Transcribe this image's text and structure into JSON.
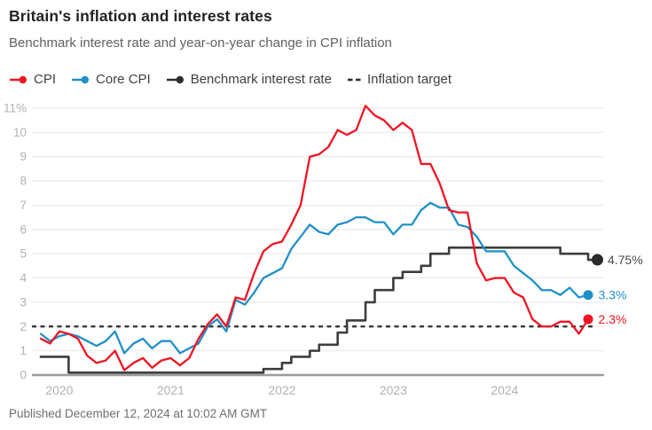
{
  "header": {
    "title": "Britain's inflation and interest rates",
    "subtitle": "Benchmark interest rate and year-on-year change in CPI inflation"
  },
  "legend": {
    "items": [
      {
        "label": "CPI",
        "color": "#f01423",
        "marker": "line-dot"
      },
      {
        "label": "Core CPI",
        "color": "#2090c8",
        "marker": "line-dot"
      },
      {
        "label": "Benchmark interest rate",
        "color": "#2e2e2e",
        "marker": "line-dot"
      },
      {
        "label": "Inflation target",
        "color": "#2e2e2e",
        "marker": "dashes"
      }
    ]
  },
  "footer": {
    "published": "Published December 12, 2024 at 10:02 AM GMT"
  },
  "chart_data": {
    "type": "line",
    "title": "Britain's inflation and interest rates",
    "subtitle": "Benchmark interest rate and year-on-year change in CPI inflation",
    "unit": "percent",
    "x_start": "2019-11",
    "x_frequency": "monthly",
    "ylim": [
      0,
      11
    ],
    "grid": "horizontal",
    "yticks": [
      "0",
      "1",
      "2",
      "3",
      "4",
      "5",
      "6",
      "7",
      "8",
      "9",
      "10",
      "11%"
    ],
    "xticks": [
      "2020",
      "2021",
      "2022",
      "2023",
      "2024"
    ],
    "target_line": {
      "name": "Inflation target",
      "value": 2,
      "style": "dashed",
      "color": "#2e2e2e"
    },
    "series": [
      {
        "name": "CPI",
        "color": "#f01423",
        "step": false,
        "end_label": "2.3%",
        "values": [
          1.5,
          1.3,
          1.8,
          1.7,
          1.5,
          0.8,
          0.5,
          0.6,
          1.0,
          0.2,
          0.5,
          0.7,
          0.3,
          0.6,
          0.7,
          0.4,
          0.7,
          1.5,
          2.1,
          2.5,
          2.0,
          3.2,
          3.1,
          4.2,
          5.1,
          5.4,
          5.5,
          6.2,
          7.0,
          9.0,
          9.1,
          9.4,
          10.1,
          9.9,
          10.1,
          11.1,
          10.7,
          10.5,
          10.1,
          10.4,
          10.1,
          8.7,
          8.7,
          7.9,
          6.8,
          6.7,
          6.7,
          4.6,
          3.9,
          4.0,
          4.0,
          3.4,
          3.2,
          2.3,
          2.0,
          2.0,
          2.2,
          2.2,
          1.7,
          2.3
        ]
      },
      {
        "name": "Core CPI",
        "color": "#2090c8",
        "step": false,
        "end_label": "3.3%",
        "values": [
          1.7,
          1.4,
          1.6,
          1.7,
          1.6,
          1.4,
          1.2,
          1.4,
          1.8,
          0.9,
          1.3,
          1.5,
          1.1,
          1.4,
          1.4,
          0.9,
          1.1,
          1.3,
          2.0,
          2.3,
          1.8,
          3.1,
          2.9,
          3.4,
          4.0,
          4.2,
          4.4,
          5.2,
          5.7,
          6.2,
          5.9,
          5.8,
          6.2,
          6.3,
          6.5,
          6.5,
          6.3,
          6.3,
          5.8,
          6.2,
          6.2,
          6.8,
          7.1,
          6.9,
          6.9,
          6.2,
          6.1,
          5.7,
          5.1,
          5.1,
          5.1,
          4.5,
          4.2,
          3.9,
          3.5,
          3.5,
          3.3,
          3.6,
          3.2,
          3.3
        ]
      },
      {
        "name": "Benchmark interest rate",
        "color": "#3d3d3d",
        "step": true,
        "end_label": "4.75%",
        "end_label_color": "#4d4d4d",
        "values": [
          0.75,
          0.75,
          0.75,
          0.75,
          0.1,
          0.1,
          0.1,
          0.1,
          0.1,
          0.1,
          0.1,
          0.1,
          0.1,
          0.1,
          0.1,
          0.1,
          0.1,
          0.1,
          0.1,
          0.1,
          0.1,
          0.1,
          0.1,
          0.1,
          0.1,
          0.25,
          0.25,
          0.5,
          0.75,
          0.75,
          1.0,
          1.25,
          1.25,
          1.75,
          2.25,
          2.25,
          3.0,
          3.5,
          3.5,
          4.0,
          4.25,
          4.25,
          4.5,
          5.0,
          5.0,
          5.25,
          5.25,
          5.25,
          5.25,
          5.25,
          5.25,
          5.25,
          5.25,
          5.25,
          5.25,
          5.25,
          5.25,
          5.0,
          5.0,
          5.0,
          4.75
        ]
      }
    ]
  }
}
